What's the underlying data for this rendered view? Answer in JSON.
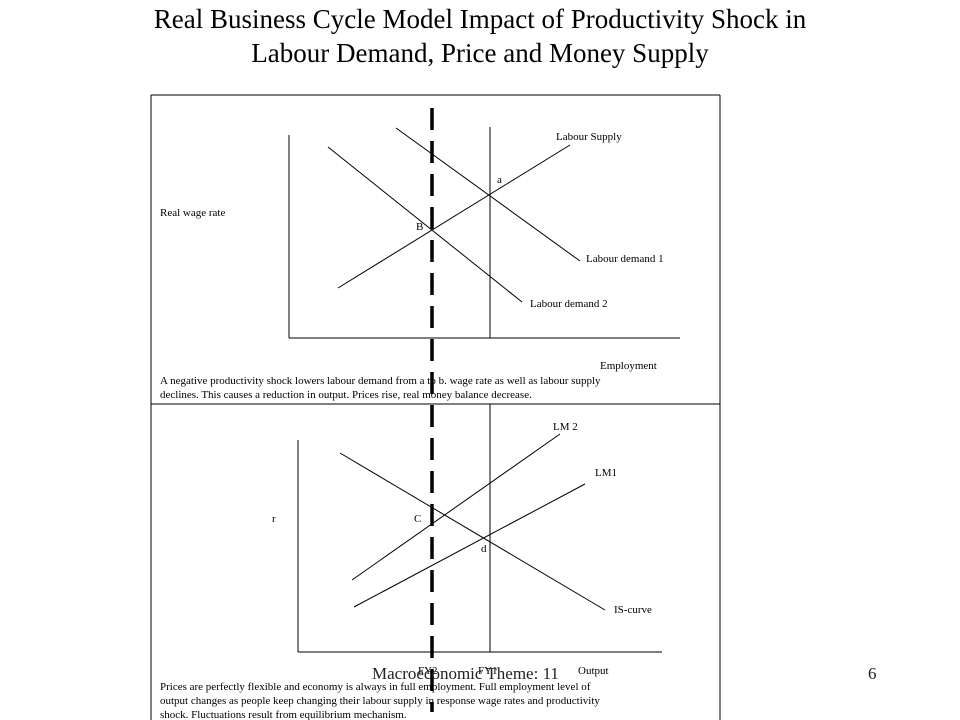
{
  "slide": {
    "title_line1": "Real Business Cycle Model Impact of Productivity Shock in",
    "title_line2": "Labour Demand, Price and Money Supply",
    "footer_theme": "Macroeconomic Theme: 11",
    "page_number": "6"
  },
  "top_panel": {
    "y_axis_label": "Real wage rate",
    "x_axis_label": "Employment",
    "curve_labour_supply": "Labour Supply",
    "curve_labour_demand_1": "Labour demand 1",
    "curve_labour_demand_2": "Labour demand 2",
    "point_a": "a",
    "point_b": "B",
    "caption_line1": "A negative productivity shock lowers labour demand from a to b. wage rate as well as labour supply",
    "caption_line2": "declines. This causes a reduction in output. Prices rise, real money balance decrease."
  },
  "bottom_panel": {
    "y_axis_label": "r",
    "x_axis_label": "Output",
    "curve_lm2": "LM 2",
    "curve_lm1": "LM1",
    "curve_is": "IS-curve",
    "point_c": "C",
    "point_d": "d",
    "tick_fy2": "FY2",
    "tick_fy1": "FY1",
    "caption_line1": "Prices are perfectly flexible and economy is always in full employment. Full employment level of",
    "caption_line2": "output changes as people keep changing their labour supply in response wage rates and productivity",
    "caption_line3": "shock. Fluctuations result from equilibrium mechanism."
  },
  "colors": {
    "line": "#000000",
    "background": "#ffffff"
  }
}
